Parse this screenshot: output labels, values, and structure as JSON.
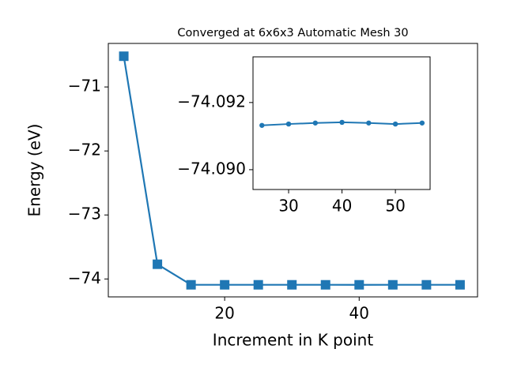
{
  "chart_data": [
    {
      "type": "line",
      "title": "Converged at 6x6x3 Automatic Mesh 30",
      "x_label": "Increment in K point",
      "y_label": "Energy (eV)",
      "x": [
        5,
        10,
        15,
        20,
        25,
        30,
        35,
        40,
        45,
        50,
        55
      ],
      "series": [
        {
          "color": "#1f77b4",
          "marker": "square",
          "values": [
            -70.52,
            -73.77,
            -74.0913,
            -74.0913,
            -74.09132,
            -74.09136,
            -74.09139,
            -74.09141,
            -74.09139,
            -74.09136,
            -74.09139
          ]
        }
      ],
      "xlim": [
        2.7,
        57.6
      ],
      "ylim": [
        -74.28,
        -70.32
      ],
      "xticks": [
        20,
        40
      ],
      "yticks": [
        {
          "value": -74,
          "label": "−74"
        },
        {
          "value": -73,
          "label": "−73"
        },
        {
          "value": -72,
          "label": "−72"
        },
        {
          "value": -71,
          "label": "−71"
        }
      ]
    },
    {
      "type": "line",
      "x": [
        25,
        30,
        35,
        40,
        45,
        50,
        55
      ],
      "series": [
        {
          "color": "#1f77b4",
          "marker": "circle",
          "values": [
            -74.09132,
            -74.09136,
            -74.09139,
            -74.09141,
            -74.09139,
            -74.09136,
            -74.09139
          ]
        }
      ],
      "xlim": [
        23.33,
        56.5
      ],
      "ylim": [
        -74.08941,
        -74.09336
      ],
      "xticks": [
        30,
        40,
        50
      ],
      "yticks": [
        {
          "value": -74.09,
          "label": "−74.090"
        },
        {
          "value": -74.092,
          "label": "−74.092"
        }
      ]
    }
  ]
}
